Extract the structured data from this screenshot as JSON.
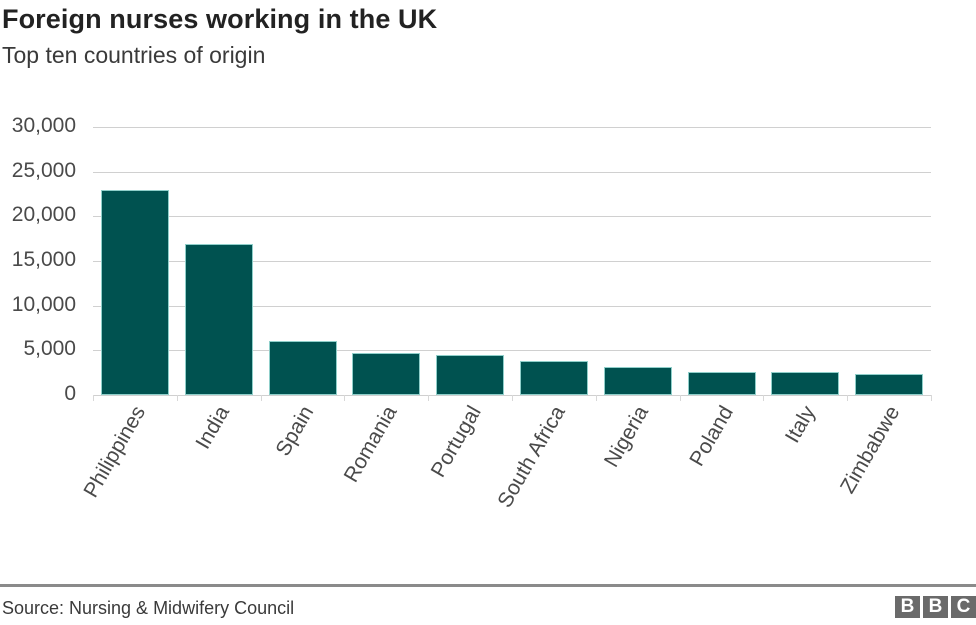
{
  "header": {
    "title": "Foreign nurses working in the UK",
    "subtitle": "Top ten countries of origin"
  },
  "footer": {
    "source": "Source: Nursing & Midwifery Council",
    "logo_letters": [
      "B",
      "B",
      "C"
    ]
  },
  "colors": {
    "bar": "#005250",
    "gridline": "#d0d0d0",
    "text": "#404040"
  },
  "chart_data": {
    "type": "bar",
    "title": "Foreign nurses working in the UK",
    "subtitle": "Top ten countries of origin",
    "xlabel": "",
    "ylabel": "",
    "ylim": [
      0,
      30000
    ],
    "yticks": [
      0,
      5000,
      10000,
      15000,
      20000,
      25000,
      30000
    ],
    "ytick_labels": [
      "0",
      "5,000",
      "10,000",
      "15,000",
      "20,000",
      "25,000",
      "30,000"
    ],
    "grid": true,
    "legend": null,
    "categories": [
      "Philippines",
      "India",
      "Spain",
      "Romania",
      "Portugal",
      "South Africa",
      "Nigeria",
      "Poland",
      "Italy",
      "Zimbabwe"
    ],
    "values": [
      22950,
      16900,
      6000,
      4700,
      4500,
      3800,
      3100,
      2600,
      2600,
      2400
    ],
    "source": "Source: Nursing & Midwifery Council"
  }
}
